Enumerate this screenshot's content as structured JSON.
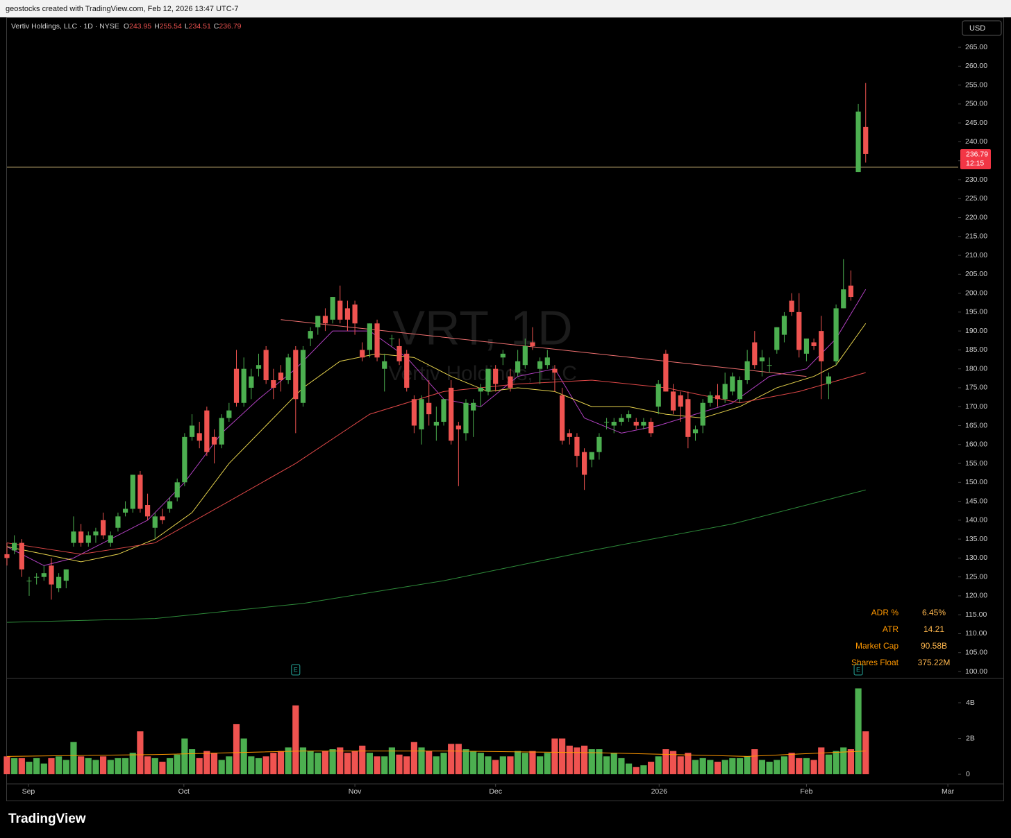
{
  "header": "geostocks created with TradingView.com, Feb 12, 2026 13:47 UTC-7",
  "brand": "TradingView",
  "chart_data": {
    "type": "candlestick",
    "symbol": "Vertiv Holdings, LLC · 1D · NYSE",
    "ohlc_labels": [
      "O",
      "H",
      "L",
      "C"
    ],
    "watermark": "VRT, 1D",
    "watermark_sub": "Vertiv Holdings, LLC",
    "currency": "USD",
    "countdown": "12:15",
    "up_color": "#4caf50",
    "down_color": "#ef5350",
    "grid": false,
    "xlim": [
      0,
      128.5
    ],
    "ylim": [
      98.35,
      272.9
    ],
    "vlim": [
      -0.54,
      5.32
    ],
    "xticks": [
      {
        "value": 2.9,
        "label": "Sep"
      },
      {
        "value": 23.9,
        "label": "Oct"
      },
      {
        "value": 47,
        "label": "Nov"
      },
      {
        "value": 66,
        "label": "Dec"
      },
      {
        "value": 88.1,
        "label": "2026"
      },
      {
        "value": 108,
        "label": "Feb"
      },
      {
        "value": 127.1,
        "label": "Mar"
      }
    ],
    "yticks": [
      {
        "value": 100,
        "label": "100.00"
      },
      {
        "value": 105,
        "label": "105.00"
      },
      {
        "value": 110,
        "label": "110.00"
      },
      {
        "value": 115,
        "label": "115.00"
      },
      {
        "value": 120,
        "label": "120.00"
      },
      {
        "value": 125,
        "label": "125.00"
      },
      {
        "value": 130,
        "label": "130.00"
      },
      {
        "value": 135,
        "label": "135.00"
      },
      {
        "value": 140,
        "label": "140.00"
      },
      {
        "value": 145,
        "label": "145.00"
      },
      {
        "value": 150,
        "label": "150.00"
      },
      {
        "value": 155,
        "label": "155.00"
      },
      {
        "value": 160,
        "label": "160.00"
      },
      {
        "value": 165,
        "label": "165.00"
      },
      {
        "value": 170,
        "label": "170.00"
      },
      {
        "value": 175,
        "label": "175.00"
      },
      {
        "value": 180,
        "label": "180.00"
      },
      {
        "value": 185,
        "label": "185.00"
      },
      {
        "value": 190,
        "label": "190.00"
      },
      {
        "value": 195,
        "label": "195.00"
      },
      {
        "value": 200,
        "label": "200.00"
      },
      {
        "value": 205,
        "label": "205.00"
      },
      {
        "value": 210,
        "label": "210.00"
      },
      {
        "value": 215,
        "label": "215.00"
      },
      {
        "value": 220,
        "label": "220.00"
      },
      {
        "value": 225,
        "label": "225.00"
      },
      {
        "value": 230,
        "label": "230.00"
      },
      {
        "value": 235,
        "label": "235.00"
      },
      {
        "value": 240,
        "label": "240.00"
      },
      {
        "value": 245,
        "label": "245.00"
      },
      {
        "value": 250,
        "label": "250.00"
      },
      {
        "value": 255,
        "label": "255.00"
      },
      {
        "value": 260,
        "label": "260.00"
      },
      {
        "value": 265,
        "label": "265.00"
      }
    ],
    "vticks": [
      0,
      {
        "value": 2,
        "label": "2B"
      },
      {
        "value": 4,
        "label": "4B"
      }
    ],
    "candles": [
      [
        131,
        134,
        128,
        130
      ],
      [
        132,
        136,
        131,
        134
      ],
      [
        134,
        135,
        125,
        127
      ],
      [
        124,
        125,
        120,
        124
      ],
      [
        125,
        126,
        123,
        125
      ],
      [
        125,
        128,
        124,
        126
      ],
      [
        128,
        130,
        119,
        123
      ],
      [
        122,
        126,
        121,
        125
      ],
      [
        124,
        127,
        122,
        127
      ],
      [
        134,
        141,
        133,
        137
      ],
      [
        137,
        139,
        133,
        134
      ],
      [
        134,
        137,
        133,
        136
      ],
      [
        136,
        138,
        134,
        137
      ],
      [
        140,
        142,
        135,
        136
      ],
      [
        134,
        137,
        133,
        136
      ],
      [
        138,
        142,
        137,
        141
      ],
      [
        142,
        145,
        141,
        143
      ],
      [
        143,
        152,
        142,
        152
      ],
      [
        152,
        153,
        142,
        143
      ],
      [
        144,
        147,
        140,
        141
      ],
      [
        138,
        142,
        135,
        141
      ],
      [
        141,
        143,
        139,
        140
      ],
      [
        143,
        146,
        142,
        145
      ],
      [
        146,
        151,
        145,
        150
      ],
      [
        150,
        163,
        149,
        162
      ],
      [
        162,
        168,
        161,
        165
      ],
      [
        163,
        166,
        159,
        161
      ],
      [
        169,
        170,
        157,
        158
      ],
      [
        162,
        164,
        155,
        160
      ],
      [
        160,
        168,
        159,
        167
      ],
      [
        167,
        171,
        166,
        169
      ],
      [
        180,
        185,
        170,
        171
      ],
      [
        171,
        183,
        170,
        180
      ],
      [
        175,
        180,
        172,
        178
      ],
      [
        180,
        184,
        178,
        181
      ],
      [
        185,
        186,
        176,
        177
      ],
      [
        177,
        180,
        172,
        175
      ],
      [
        179,
        181,
        174,
        177
      ],
      [
        177,
        184,
        176,
        183
      ],
      [
        185,
        186,
        163,
        172
      ],
      [
        171,
        186,
        170,
        185
      ],
      [
        188,
        191,
        186,
        190
      ],
      [
        191,
        194,
        189,
        194
      ],
      [
        194,
        196,
        190,
        192
      ],
      [
        193,
        199,
        192,
        199
      ],
      [
        198,
        202,
        192,
        193
      ],
      [
        196,
        198,
        190,
        193
      ],
      [
        197,
        198,
        189,
        192
      ],
      [
        185,
        187,
        182,
        183
      ],
      [
        185,
        192,
        183,
        192
      ],
      [
        192,
        193,
        182,
        183
      ],
      [
        180,
        184,
        174,
        182
      ],
      [
        188,
        189,
        186,
        188
      ],
      [
        186,
        188,
        181,
        182
      ],
      [
        184,
        185,
        174,
        175
      ],
      [
        172,
        173,
        163,
        165
      ],
      [
        164,
        173,
        160,
        172
      ],
      [
        171,
        177,
        165,
        168
      ],
      [
        165,
        170,
        161,
        166
      ],
      [
        166,
        172,
        165,
        172
      ],
      [
        175,
        177,
        160,
        161
      ],
      [
        165,
        166,
        149,
        164
      ],
      [
        163,
        172,
        161,
        171
      ],
      [
        169,
        172,
        162,
        171
      ],
      [
        174,
        176,
        170,
        175
      ],
      [
        174,
        180,
        173,
        180
      ],
      [
        180,
        181,
        174,
        176
      ],
      [
        183,
        185,
        181,
        184
      ],
      [
        178,
        180,
        174,
        175
      ],
      [
        179,
        185,
        178,
        182
      ],
      [
        181,
        188,
        180,
        186
      ],
      [
        187,
        191,
        185,
        186
      ],
      [
        180,
        183,
        176,
        182
      ],
      [
        181,
        185,
        180,
        183
      ],
      [
        180,
        181,
        174,
        179
      ],
      [
        173,
        175,
        160,
        161
      ],
      [
        163,
        164,
        160,
        162
      ],
      [
        162,
        163,
        154,
        157
      ],
      [
        158,
        159,
        148,
        152
      ],
      [
        156,
        158,
        154,
        158
      ],
      [
        158,
        163,
        156,
        162
      ],
      [
        166,
        167,
        164,
        166
      ],
      [
        165,
        167,
        163,
        166
      ],
      [
        166,
        168,
        165,
        167
      ],
      [
        167,
        169,
        166,
        168
      ],
      [
        166,
        167,
        164,
        165
      ],
      [
        165,
        167,
        164,
        166
      ],
      [
        166,
        167,
        162,
        163
      ],
      [
        170,
        177,
        168,
        176
      ],
      [
        184,
        185,
        174,
        174
      ],
      [
        174,
        176,
        168,
        169
      ],
      [
        173,
        174,
        166,
        170
      ],
      [
        172,
        174,
        159,
        162
      ],
      [
        163,
        165,
        161,
        164
      ],
      [
        165,
        172,
        163,
        171
      ],
      [
        171,
        174,
        170,
        173
      ],
      [
        173,
        176,
        170,
        172
      ],
      [
        172,
        179,
        171,
        176
      ],
      [
        174,
        179,
        173,
        178
      ],
      [
        172,
        178,
        171,
        177
      ],
      [
        177,
        185,
        176,
        182
      ],
      [
        187,
        190,
        180,
        181
      ],
      [
        182,
        185,
        178,
        183
      ],
      [
        181,
        183,
        179,
        181
      ],
      [
        185,
        191,
        184,
        191
      ],
      [
        189,
        195,
        187,
        194
      ],
      [
        198,
        200,
        194,
        195
      ],
      [
        195,
        200,
        183,
        185
      ],
      [
        184,
        188,
        182,
        188
      ],
      [
        187,
        188,
        185,
        186
      ],
      [
        190,
        194,
        172,
        182
      ],
      [
        176,
        179,
        172,
        178
      ],
      [
        182,
        197,
        181,
        196
      ],
      [
        196,
        209,
        196,
        201
      ],
      [
        202,
        206,
        198,
        199
      ],
      [
        232,
        250,
        232,
        248
      ],
      [
        243.95,
        255.54,
        234.51,
        236.79
      ]
    ],
    "volume": [
      1.0,
      0.9,
      0.9,
      0.7,
      0.9,
      0.6,
      0.9,
      1.0,
      0.8,
      1.8,
      1.0,
      0.9,
      0.8,
      1.0,
      0.8,
      0.9,
      0.9,
      1.2,
      2.4,
      1.0,
      0.9,
      0.7,
      0.9,
      1.1,
      2.0,
      1.4,
      0.9,
      1.3,
      1.2,
      0.8,
      1.0,
      2.8,
      2.0,
      1.0,
      0.9,
      1.0,
      1.2,
      1.3,
      1.5,
      3.85,
      1.5,
      1.3,
      1.2,
      1.3,
      1.4,
      1.5,
      1.2,
      1.3,
      1.6,
      1.2,
      1.0,
      1.0,
      1.5,
      1.1,
      1.0,
      1.8,
      1.5,
      1.3,
      1.0,
      1.2,
      1.7,
      1.7,
      1.4,
      1.3,
      1.2,
      1.0,
      0.8,
      1.0,
      1.0,
      1.3,
      1.2,
      1.3,
      1.0,
      1.2,
      2.0,
      2.0,
      1.6,
      1.5,
      1.6,
      1.4,
      1.4,
      1.0,
      1.2,
      0.9,
      0.6,
      0.4,
      0.5,
      0.7,
      1.0,
      1.4,
      1.3,
      1.0,
      1.2,
      0.8,
      0.9,
      0.8,
      0.7,
      0.8,
      0.9,
      0.9,
      1.0,
      1.4,
      0.8,
      0.7,
      0.8,
      1.0,
      1.2,
      0.9,
      0.9,
      0.8,
      1.5,
      1.1,
      1.3,
      1.5,
      1.4,
      4.8,
      2.4
    ],
    "volume_ma": {
      "color": "#ff9800",
      "x": [
        0,
        20,
        40,
        60,
        80,
        100,
        116
      ],
      "values": [
        1.0,
        1.1,
        1.3,
        1.3,
        1.2,
        1.0,
        1.3
      ]
    },
    "series": [
      {
        "color": "#b040c0",
        "x": [
          0,
          5,
          9,
          14,
          19,
          24,
          29,
          34,
          39,
          44,
          49,
          54,
          59,
          64,
          69,
          74,
          78,
          83,
          88,
          93,
          98,
          103,
          108,
          112,
          116
        ],
        "values": [
          133,
          128,
          130,
          135,
          140,
          150,
          163,
          172,
          180,
          190,
          190,
          183,
          172,
          170,
          178,
          180,
          167,
          163,
          165,
          168,
          171,
          178,
          180,
          188,
          201
        ]
      },
      {
        "color": "#e8d44d",
        "x": [
          0,
          5,
          10,
          15,
          20,
          25,
          30,
          35,
          40,
          45,
          50,
          55,
          60,
          65,
          69,
          74,
          79,
          84,
          89,
          94,
          99,
          104,
          109,
          112,
          116
        ],
        "values": [
          133,
          131,
          129,
          131,
          135,
          142,
          155,
          165,
          175,
          182,
          184,
          183,
          178,
          174,
          175,
          174,
          170,
          170,
          168,
          167,
          170,
          175,
          178,
          181,
          192
        ]
      },
      {
        "color": "#e04848",
        "x": [
          0,
          10,
          20,
          30,
          39,
          49,
          59,
          69,
          79,
          89,
          99,
          107,
          116
        ],
        "values": [
          134,
          131,
          134,
          145,
          155,
          168,
          174,
          176,
          177,
          175,
          171,
          174,
          179
        ]
      },
      {
        "color": "#2e8b3a",
        "x": [
          0,
          20,
          40,
          59,
          79,
          98,
          116
        ],
        "values": [
          113,
          114,
          118,
          124,
          132,
          139,
          148
        ]
      }
    ],
    "trendline": {
      "color": "#f07070",
      "x": [
        37,
        108
      ],
      "values": [
        193,
        178
      ]
    },
    "hline": {
      "color": "#8a7a50",
      "value": 233.3
    },
    "events": [
      {
        "x": 39,
        "label": "E"
      },
      {
        "x": 115,
        "label": "E"
      }
    ],
    "stats": [
      {
        "label": "ADR %",
        "value": "6.45%"
      },
      {
        "label": "ATR",
        "value": "14.21"
      },
      {
        "label": "Market Cap",
        "value": "90.58B"
      },
      {
        "label": "Shares Float",
        "value": "375.22M"
      }
    ]
  }
}
